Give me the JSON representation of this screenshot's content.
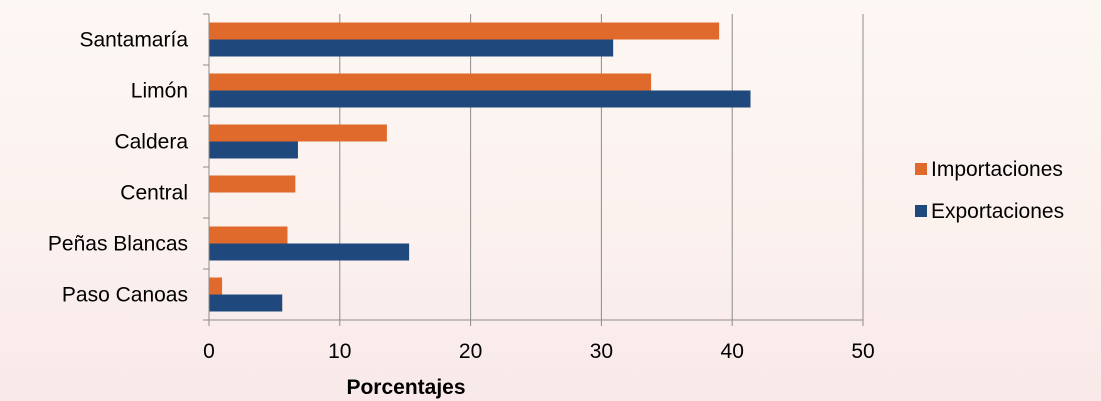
{
  "chart_data": {
    "type": "bar",
    "orientation": "horizontal",
    "categories": [
      "Santamaría",
      "Limón",
      "Caldera",
      "Central",
      "Peñas Blancas",
      "Paso Canoas"
    ],
    "series": [
      {
        "name": "Importaciones",
        "color": "#e06a2b",
        "values": [
          39.0,
          33.8,
          13.6,
          6.6,
          6.0,
          1.0
        ]
      },
      {
        "name": "Exportaciones",
        "color": "#1f497d",
        "values": [
          30.9,
          41.4,
          6.8,
          0.0,
          15.3,
          5.6
        ]
      }
    ],
    "xlabel": "Porcentajes",
    "xlim": [
      0,
      50
    ],
    "xticks": [
      "0",
      "10",
      "20",
      "30",
      "40",
      "50"
    ],
    "grid": true,
    "legend": "right",
    "legend_entries": [
      "Importaciones",
      "Exportaciones"
    ]
  }
}
